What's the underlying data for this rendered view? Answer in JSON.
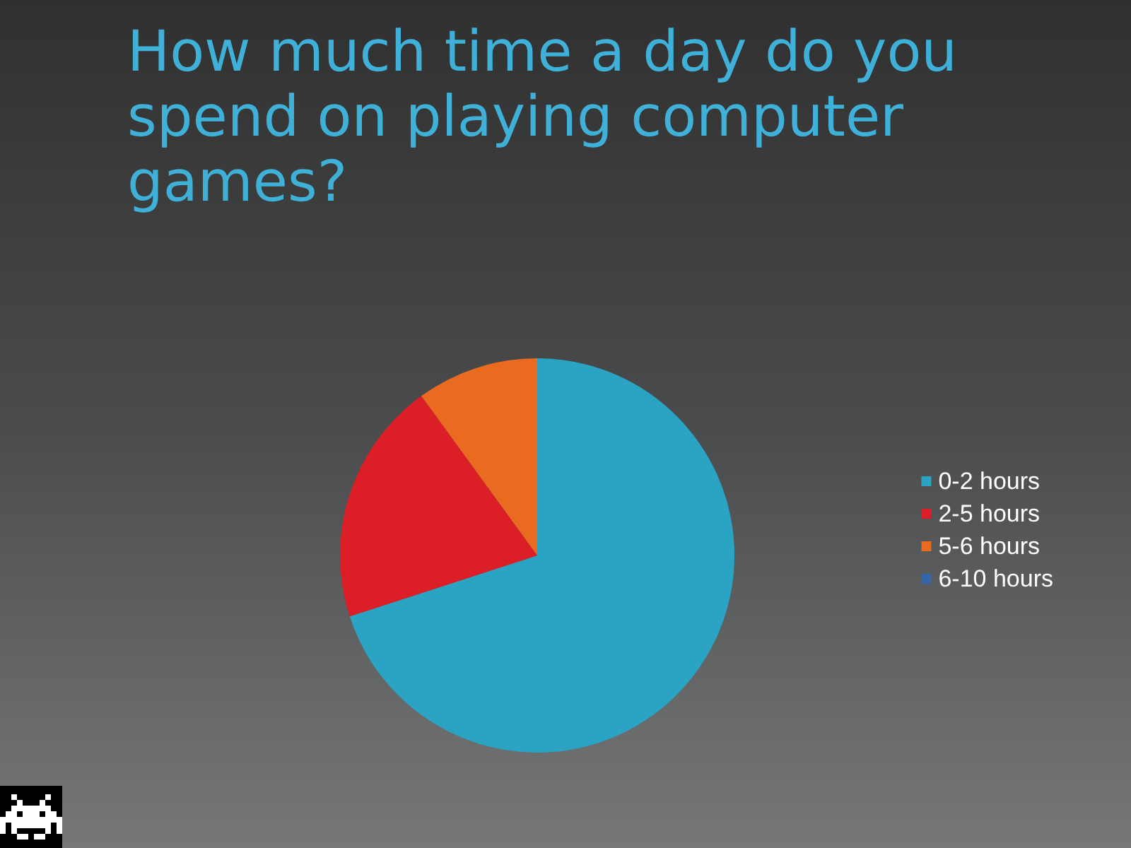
{
  "chart_data": {
    "type": "pie",
    "title": "How much time a day do you spend on playing computer games?",
    "categories": [
      "0-2 hours",
      "2-5 hours",
      "5-6 hours",
      "6-10 hours"
    ],
    "values": [
      70,
      20,
      10,
      0
    ],
    "colors": [
      "#2ba3c3",
      "#dc1f26",
      "#ea6a1f",
      "#3566a8"
    ],
    "legend": "right"
  }
}
